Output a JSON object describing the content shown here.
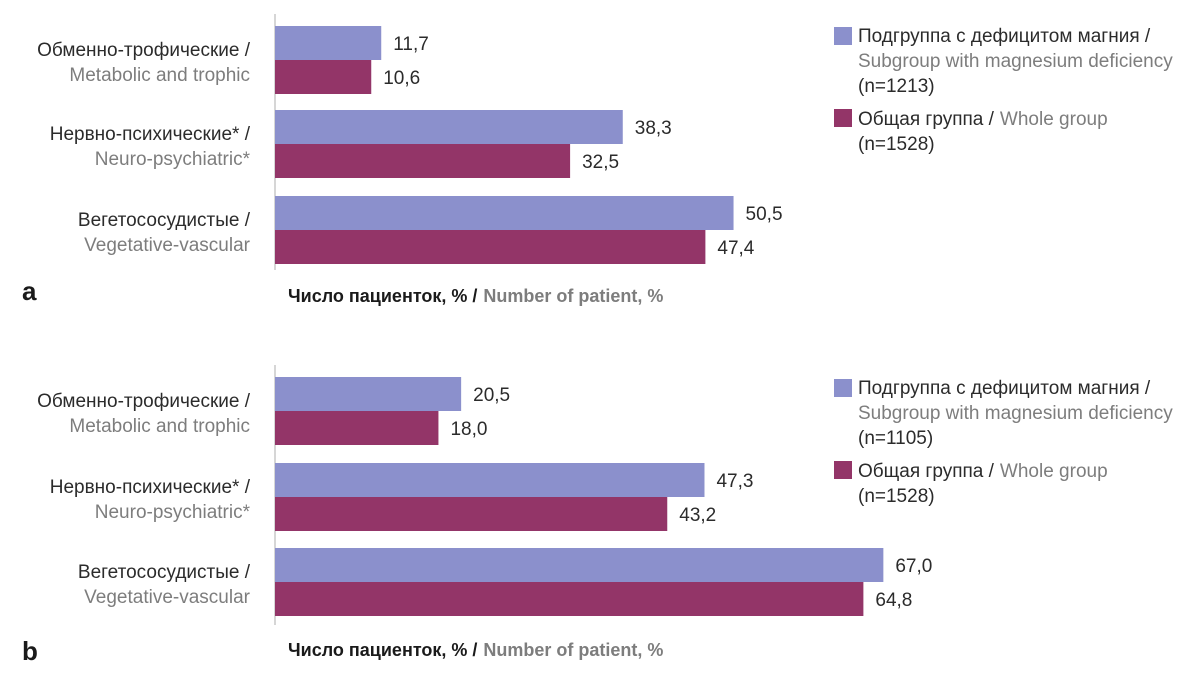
{
  "chart_data": [
    {
      "type": "bar",
      "orientation": "horizontal",
      "panel": "a",
      "xlabel": {
        "ru": "Число пациенток, % /",
        "en": "Number of patient, %"
      },
      "categories": [
        {
          "ru": "Обменно-трофические /",
          "en": "Metabolic and trophic"
        },
        {
          "ru": "Нервно-психические* /",
          "en": "Neuro-psychiatric*"
        },
        {
          "ru": "Вегетососудистые /",
          "en": "Vegetative-vascular"
        }
      ],
      "series": [
        {
          "name": {
            "ru": "Подгруппа с дефицитом магния /",
            "en": "Subgroup with magnesium deficiency",
            "n": "(n=1213)"
          },
          "color": "#8b90cc",
          "values": [
            11.7,
            38.3,
            50.5
          ],
          "labels": [
            "11,7",
            "38,3",
            "50,5"
          ]
        },
        {
          "name": {
            "ru": "Общая группа /",
            "en": "Whole group",
            "n": "(n=1528)"
          },
          "color": "#933568",
          "values": [
            10.6,
            32.5,
            47.4
          ],
          "labels": [
            "10,6",
            "32,5",
            "47,4"
          ]
        }
      ],
      "xlim": [
        0,
        100
      ],
      "grid": false,
      "legend_position": "right"
    },
    {
      "type": "bar",
      "orientation": "horizontal",
      "panel": "b",
      "xlabel": {
        "ru": "Число пациенток, % /",
        "en": "Number of patient, %"
      },
      "categories": [
        {
          "ru": "Обменно-трофические /",
          "en": "Metabolic and trophic"
        },
        {
          "ru": "Нервно-психические* /",
          "en": "Neuro-psychiatric*"
        },
        {
          "ru": "Вегетососудистые /",
          "en": "Vegetative-vascular"
        }
      ],
      "series": [
        {
          "name": {
            "ru": "Подгруппа с дефицитом магния /",
            "en": "Subgroup with magnesium deficiency",
            "n": "(n=1105)"
          },
          "color": "#8b90cc",
          "values": [
            20.5,
            47.3,
            67.0
          ],
          "labels": [
            "20,5",
            "47,3",
            "67,0"
          ]
        },
        {
          "name": {
            "ru": "Общая группа /",
            "en": "Whole group",
            "n": "(n=1528)"
          },
          "color": "#933568",
          "values": [
            18.0,
            43.2,
            64.8
          ],
          "labels": [
            "18,0",
            "43,2",
            "64,8"
          ]
        }
      ],
      "xlim": [
        0,
        100
      ],
      "grid": false,
      "legend_position": "right"
    }
  ]
}
